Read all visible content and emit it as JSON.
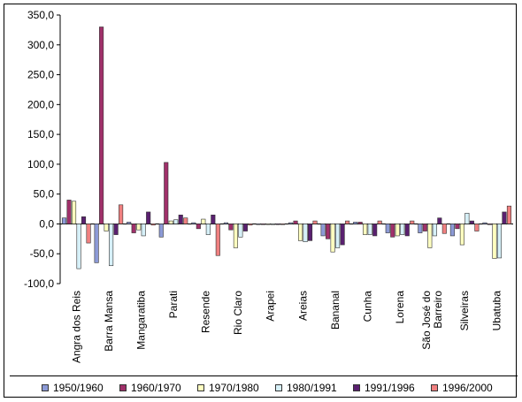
{
  "chart_data": {
    "type": "bar",
    "categories": [
      "Angra dos Reis",
      "Barra Mansa",
      "Mangaratiba",
      "Parati",
      "Resende",
      "Rio Claro",
      "Arapei",
      "Areias",
      "Bananal",
      "Cunha",
      "Lorena",
      "São José do Barreiro",
      "Silveiras",
      "Ubatuba"
    ],
    "category_lines": [
      [
        "Angra dos Reis"
      ],
      [
        "Barra Mansa"
      ],
      [
        "Mangaratiba"
      ],
      [
        "Parati"
      ],
      [
        "Resende"
      ],
      [
        "Rio Claro"
      ],
      [
        "Arapei"
      ],
      [
        "Areias"
      ],
      [
        "Bananal"
      ],
      [
        "Cunha"
      ],
      [
        "Lorena"
      ],
      [
        "São José do",
        "Barreiro"
      ],
      [
        "Silveiras"
      ],
      [
        "Ubatuba"
      ]
    ],
    "series": [
      {
        "name": "1950/1960",
        "color": "#8c9ad6",
        "values": [
          10,
          -65,
          3,
          -22,
          2,
          2,
          0,
          2,
          -20,
          3,
          -15,
          -15,
          -20,
          2
        ]
      },
      {
        "name": "1960/1970",
        "color": "#a0306a",
        "values": [
          40,
          330,
          -15,
          103,
          -8,
          -10,
          0,
          5,
          -25,
          3,
          -22,
          -12,
          -8,
          0
        ]
      },
      {
        "name": "1970/1980",
        "color": "#ffffc0",
        "values": [
          38,
          -12,
          -10,
          5,
          8,
          -40,
          0,
          -28,
          -47,
          -18,
          -20,
          -40,
          -35,
          -58
        ]
      },
      {
        "name": "1980/1991",
        "color": "#d6f0f8",
        "values": [
          -75,
          -70,
          -20,
          7,
          -18,
          -22,
          0,
          -30,
          -40,
          -18,
          -18,
          -20,
          18,
          -57
        ]
      },
      {
        "name": "1991/1996",
        "color": "#5a2070",
        "values": [
          12,
          -18,
          20,
          15,
          15,
          -12,
          0,
          -28,
          -35,
          -20,
          -20,
          10,
          5,
          20
        ]
      },
      {
        "name": "1996/2000",
        "color": "#f08080",
        "values": [
          -32,
          32,
          -2,
          10,
          -53,
          -2,
          0,
          5,
          5,
          5,
          5,
          -16,
          -12,
          30
        ]
      }
    ],
    "y_ticks": [
      "350,0",
      "300,0",
      "250,0",
      "200,0",
      "150,0",
      "100,0",
      "50,0",
      "0,0",
      "-50,0",
      "-100,0"
    ],
    "ylim": [
      -100,
      350
    ],
    "grid": false,
    "legend_position": "bottom"
  }
}
